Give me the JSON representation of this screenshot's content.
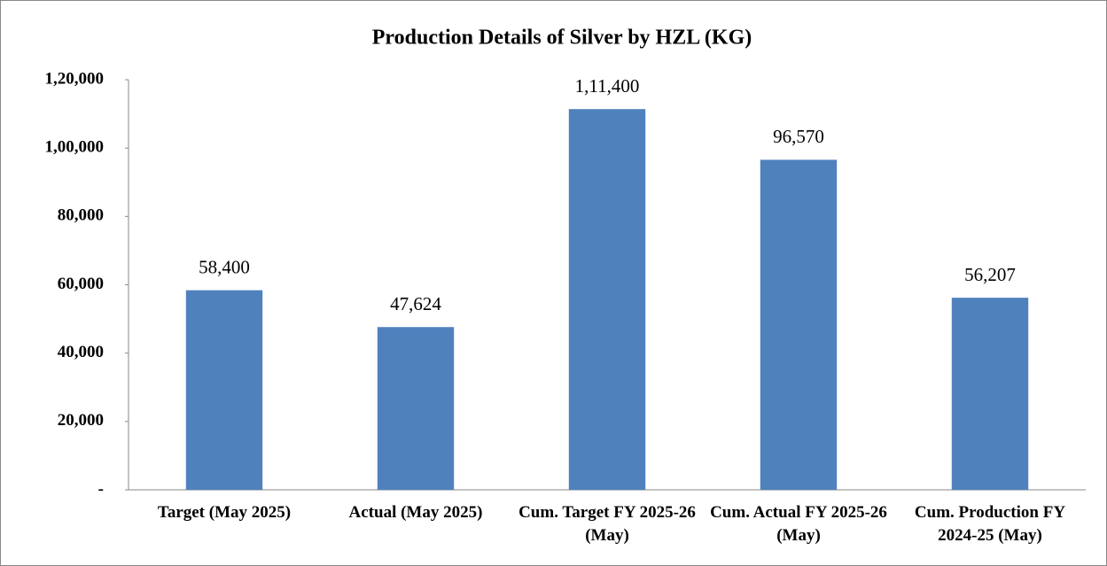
{
  "chart_data": {
    "type": "bar",
    "title": "Production Details of Silver by HZL (KG)",
    "categories": [
      "Target (May 2025)",
      "Actual (May 2025)",
      "Cum. Target FY 2025-26 (May)",
      "Cum. Actual FY 2025-26 (May)",
      "Cum. Production FY 2024-25 (May)"
    ],
    "values": [
      58400,
      47624,
      111400,
      96570,
      56207
    ],
    "value_labels": [
      "58,400",
      "47,624",
      "1,11,400",
      "96,570",
      "56,207"
    ],
    "color": "#4f81bd",
    "ylim": [
      0,
      120000
    ],
    "yticks": [
      {
        "value": 0,
        "label": "-"
      },
      {
        "value": 20000,
        "label": "20,000"
      },
      {
        "value": 40000,
        "label": "40,000"
      },
      {
        "value": 60000,
        "label": "60,000"
      },
      {
        "value": 80000,
        "label": "80,000"
      },
      {
        "value": 100000,
        "label": "1,00,000"
      },
      {
        "value": 120000,
        "label": "1,20,000"
      }
    ],
    "grid": false
  }
}
